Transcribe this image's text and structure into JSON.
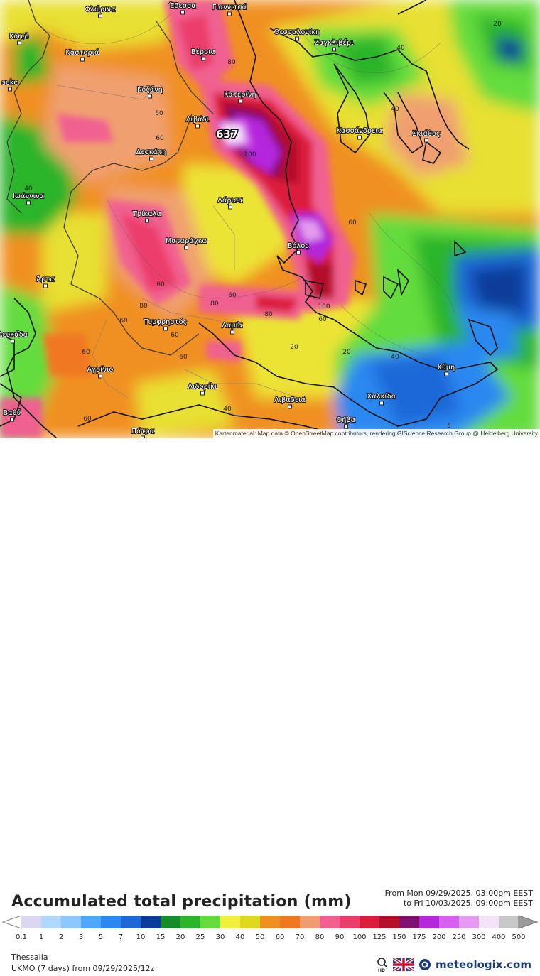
{
  "map": {
    "attribution": "Kartenmaterial: Map data © OpenStreetMap contributors, rendering GIScience Research Group @ Heidelberg University",
    "max_value": "637",
    "cities": [
      {
        "name": "Φλώρινα"
      },
      {
        "name": "Έδεσσα"
      },
      {
        "name": "Γιαννιτσά"
      },
      {
        "name": "Korçë"
      },
      {
        "name": "Θεσσαλονίκη"
      },
      {
        "name": "Βέροια"
      },
      {
        "name": "Ζαγκλιβέρι"
      },
      {
        "name": "Καστοριά"
      },
      {
        "name": "seke"
      },
      {
        "name": "Κοζάνη"
      },
      {
        "name": "Κατερίνη"
      },
      {
        "name": "Λιβάδι"
      },
      {
        "name": "Κασσάνδρεια"
      },
      {
        "name": "Σκιάθος"
      },
      {
        "name": "Δεσκάτη"
      },
      {
        "name": "Ιωάννινα"
      },
      {
        "name": "Λάρισα"
      },
      {
        "name": "Τρίκαλα"
      },
      {
        "name": "Ματαράγκα"
      },
      {
        "name": "Βόλος"
      },
      {
        "name": "Άρτα"
      },
      {
        "name": "Τυμφρηστός"
      },
      {
        "name": "Λαμία"
      },
      {
        "name": "Λευκάδα"
      },
      {
        "name": "Αγρίνιο"
      },
      {
        "name": "Λιδορίκι"
      },
      {
        "name": "Χαλκίδα"
      },
      {
        "name": "Κύμη"
      },
      {
        "name": "Βαθύ"
      },
      {
        "name": "Λιβαδειά"
      },
      {
        "name": "Θήβα"
      },
      {
        "name": "Πάτρα"
      }
    ],
    "contour_labels": [
      "20",
      "40",
      "80",
      "40",
      "80",
      "60",
      "60",
      "40",
      "60",
      "60",
      "20",
      "200",
      "60",
      "60",
      "80",
      "80",
      "60",
      "100",
      "60",
      "60",
      "60",
      "20",
      "40",
      "40",
      "60",
      "5"
    ]
  },
  "legend": {
    "title": "Accumulated total precipitation (mm)",
    "from_text": "From Mon 09/29/2025, 03:00pm EEST",
    "to_text": "to Fri 10/03/2025, 09:00pm EEST",
    "ticks": [
      "0.1",
      "1",
      "2",
      "3",
      "5",
      "7",
      "10",
      "15",
      "20",
      "25",
      "30",
      "40",
      "50",
      "60",
      "70",
      "80",
      "90",
      "100",
      "125",
      "150",
      "175",
      "200",
      "250",
      "300",
      "400",
      "500"
    ],
    "colors": [
      "#dcd6f0",
      "#b0d8ff",
      "#8cc8ff",
      "#4fa8ff",
      "#2a88f0",
      "#1c68d8",
      "#0c3c9a",
      "#148c28",
      "#2cb42c",
      "#64dc3c",
      "#f0f03c",
      "#e0d81c",
      "#f09020",
      "#f07820",
      "#f09c70",
      "#f06090",
      "#ec3c6c",
      "#dc1c3c",
      "#b4102c",
      "#801070",
      "#b428dc",
      "#d860f0",
      "#e49cf0",
      "#f4e4f8",
      "#c8c8c8"
    ]
  },
  "footer": {
    "region": "Thessalia",
    "model": "UKMO (7 days) from 09/29/2025/12z",
    "brand": "meteologix.com"
  }
}
